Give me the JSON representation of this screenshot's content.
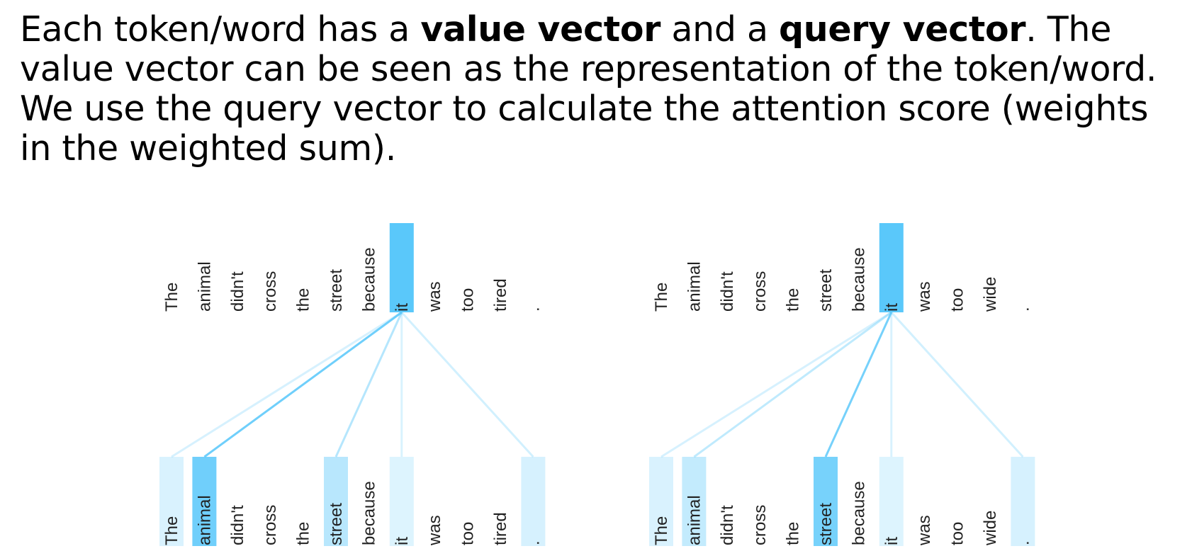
{
  "paragraph": {
    "s1": "Each token/word has a ",
    "b1": "value vector",
    "s2": " and a ",
    "b2": "query vector",
    "s3": ". The value vector can be seen as the representation of the token/word. We use the query vector to calculate the attention score (weights in the weighted sum)."
  },
  "colors": {
    "highlight": "#5ac8fa",
    "text": "#222222"
  },
  "diagrams": [
    {
      "tokens": [
        "The",
        "animal",
        "didn't",
        "cross",
        "the",
        "street",
        "because",
        "it",
        "was",
        "too",
        "tired",
        "."
      ],
      "query_index": 7,
      "weights": [
        0.12,
        0.85,
        0,
        0,
        0,
        0.35,
        0,
        0.1,
        0,
        0,
        0,
        0.15
      ]
    },
    {
      "tokens": [
        "The",
        "animal",
        "didn't",
        "cross",
        "the",
        "street",
        "because",
        "it",
        "was",
        "too",
        "wide",
        "."
      ],
      "query_index": 7,
      "weights": [
        0.12,
        0.28,
        0,
        0,
        0,
        0.8,
        0,
        0.1,
        0,
        0,
        0,
        0.15
      ]
    }
  ]
}
